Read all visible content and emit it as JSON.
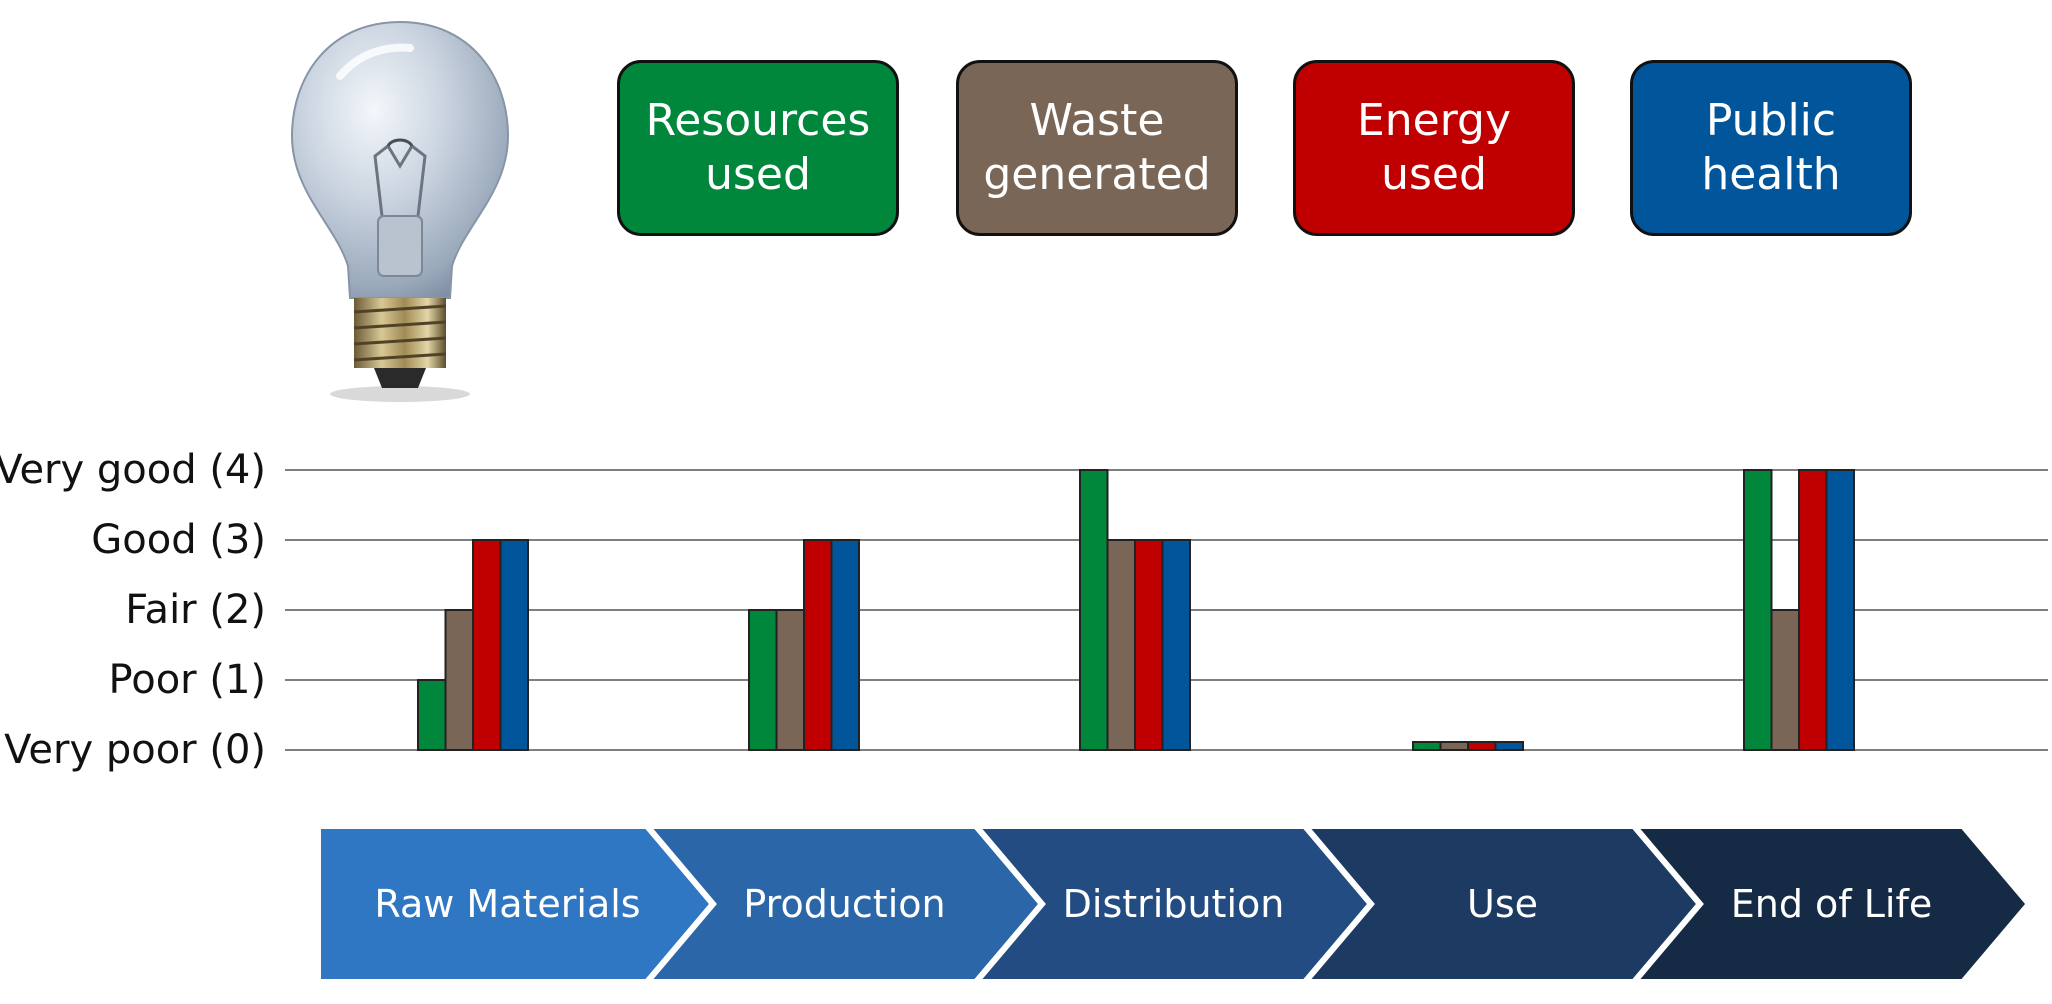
{
  "colors": {
    "resources": "#00873c",
    "waste": "#7a6657",
    "energy": "#c00000",
    "health": "#00559b",
    "grid": "#7f7f7f",
    "bar_border": "#222222"
  },
  "legend": [
    {
      "label": "Resources\nused",
      "color": "#00873c"
    },
    {
      "label": "Waste\ngenerated",
      "color": "#7a6657"
    },
    {
      "label": "Energy\nused",
      "color": "#c00000"
    },
    {
      "label": "Public\nhealth",
      "color": "#00559b"
    }
  ],
  "stages": [
    {
      "label": "Raw Materials",
      "color": "#2f77c3"
    },
    {
      "label": "Production",
      "color": "#2b66a9"
    },
    {
      "label": "Distribution",
      "color": "#234d82"
    },
    {
      "label": "Use",
      "color": "#1c3a62"
    },
    {
      "label": "End of Life",
      "color": "#152a45"
    }
  ],
  "chart_data": {
    "type": "bar",
    "categories": [
      "Raw Materials",
      "Production",
      "Distribution",
      "Use",
      "End of Life"
    ],
    "series": [
      {
        "name": "Resources used",
        "values": [
          1,
          2,
          4,
          0,
          4
        ]
      },
      {
        "name": "Waste generated",
        "values": [
          2,
          2,
          3,
          0,
          2
        ]
      },
      {
        "name": "Energy used",
        "values": [
          3,
          3,
          3,
          0,
          4
        ]
      },
      {
        "name": "Public health",
        "values": [
          3,
          3,
          3,
          0,
          4
        ]
      }
    ],
    "yticks": [
      {
        "value": 4,
        "label": "Very good (4)"
      },
      {
        "value": 3,
        "label": "Good (3)"
      },
      {
        "value": 2,
        "label": "Fair (2)"
      },
      {
        "value": 1,
        "label": "Poor (1)"
      },
      {
        "value": 0,
        "label": "Very poor (0)"
      }
    ],
    "ylim": [
      0,
      4
    ],
    "grid": true
  }
}
